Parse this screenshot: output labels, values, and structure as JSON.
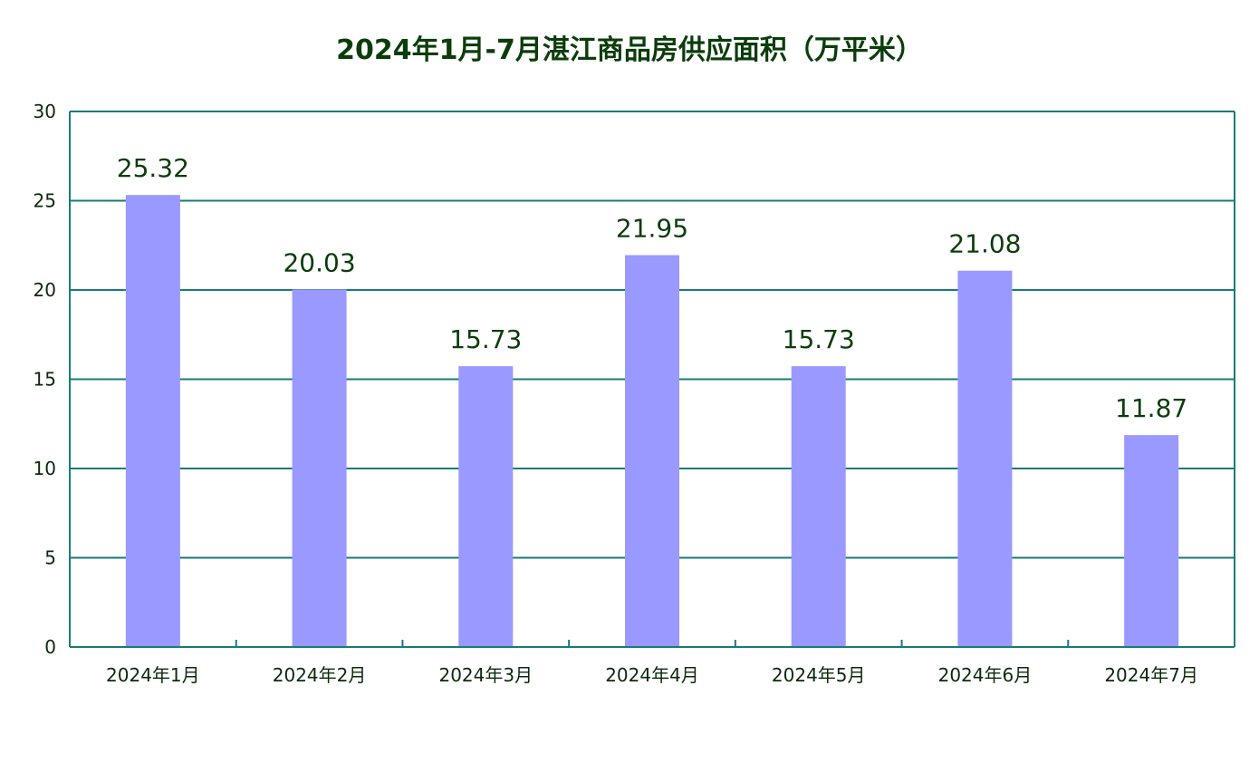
{
  "chart_data": {
    "type": "bar",
    "title": "2024年1月-7月湛江商品房供应面积（万平米）",
    "xlabel": "",
    "ylabel": "",
    "categories": [
      "2024年1月",
      "2024年2月",
      "2024年3月",
      "2024年4月",
      "2024年5月",
      "2024年6月",
      "2024年7月"
    ],
    "values": [
      25.32,
      20.03,
      15.73,
      21.95,
      15.73,
      21.08,
      11.87
    ],
    "value_labels": [
      "25.32",
      "20.03",
      "15.73",
      "21.95",
      "15.73",
      "21.08",
      "11.87"
    ],
    "ylim": [
      0,
      30
    ],
    "yticks": [
      "0",
      "5",
      "10",
      "15",
      "20",
      "25",
      "30"
    ],
    "grid": true,
    "legend": "none",
    "colors": {
      "bar": "#9999ff",
      "axis": "#1a7a7a",
      "grid": "#1a7a7a",
      "text": "#0b3d0b"
    }
  }
}
